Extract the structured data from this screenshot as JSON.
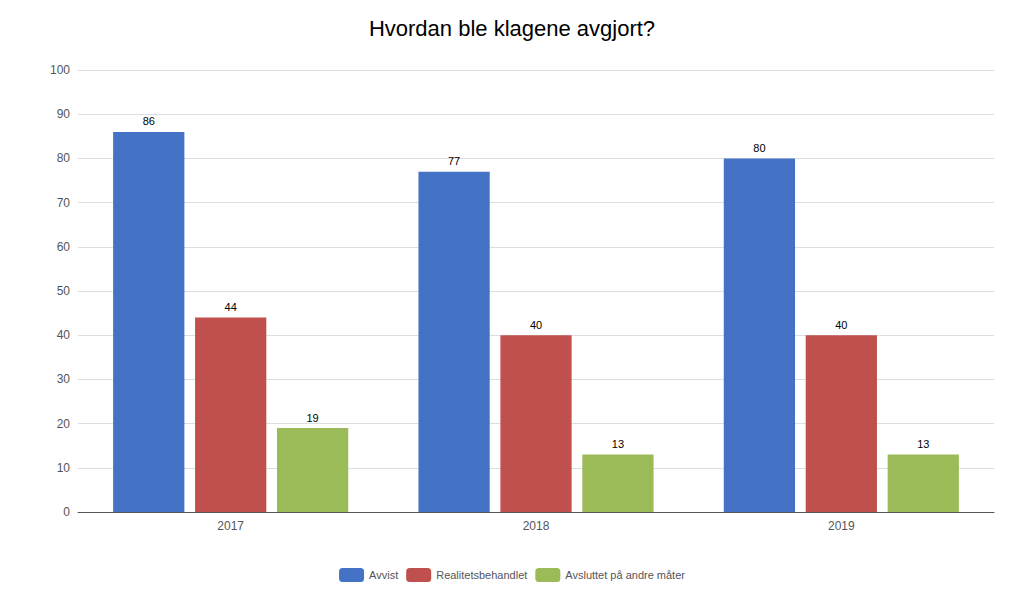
{
  "chart_data": {
    "type": "bar",
    "title": "Hvordan ble klagene avgjort?",
    "categories": [
      "2017",
      "2018",
      "2019"
    ],
    "series": [
      {
        "name": "Avvist",
        "color": "#4472C4",
        "values": [
          86,
          77,
          80
        ]
      },
      {
        "name": "Realitetsbehandlet",
        "color": "#C0504D",
        "values": [
          44,
          40,
          40
        ]
      },
      {
        "name": "Avsluttet på andre måter",
        "color": "#9BBB59",
        "values": [
          19,
          13,
          13
        ]
      }
    ],
    "ylim": [
      0,
      100
    ],
    "yticks": [
      0,
      10,
      20,
      30,
      40,
      50,
      60,
      70,
      80,
      90,
      100
    ],
    "grid": true,
    "legend": "bottom",
    "data_labels": true
  }
}
